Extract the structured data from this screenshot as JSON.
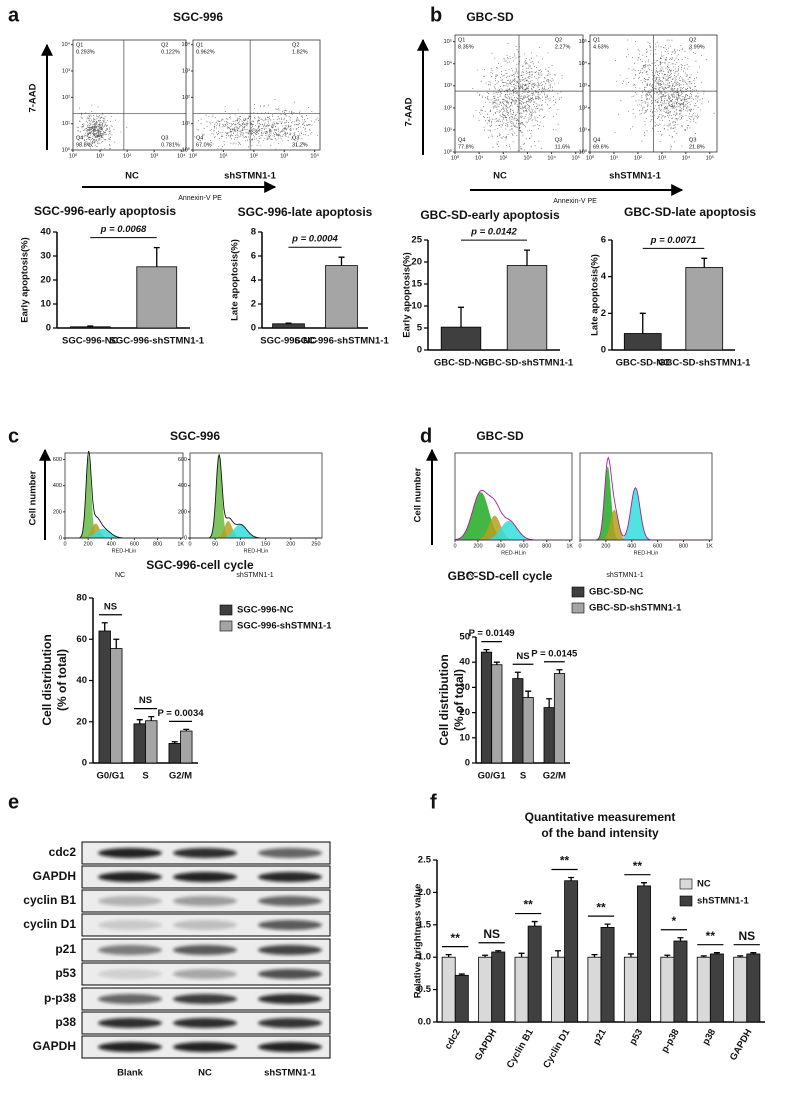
{
  "chart_data": [
    {
      "type": "scatter",
      "panel": "a",
      "title": "SGC-996",
      "ylabel": "7-AAD",
      "xlabel": "Annexin-V PE",
      "log_scale": true,
      "xlim": [
        1,
        15000
      ],
      "ylim": [
        1,
        15000
      ],
      "xticks": [
        {
          "value": 1,
          "label": "10⁰"
        },
        {
          "value": 10,
          "label": "10¹"
        },
        {
          "value": 100,
          "label": "10²"
        },
        {
          "value": 1000,
          "label": "10³"
        },
        {
          "value": 10000,
          "label": "10⁴"
        }
      ],
      "yticks": [
        {
          "value": 1,
          "label": "10⁰"
        },
        {
          "value": 10,
          "label": "10¹"
        },
        {
          "value": 100,
          "label": "10²"
        },
        {
          "value": 1000,
          "label": "10³"
        },
        {
          "value": 10000,
          "label": "10⁴"
        }
      ],
      "plots": [
        {
          "label": "NC",
          "quadrants": [
            {
              "name": "Q1",
              "text": "0.293%"
            },
            {
              "name": "Q2",
              "text": "0.122%"
            },
            {
              "name": "Q4",
              "text": "98.8%"
            },
            {
              "name": "Q3",
              "text": "0.781%"
            }
          ]
        },
        {
          "label": "shSTMN1-1",
          "quadrants": [
            {
              "name": "Q1",
              "text": "0.962%"
            },
            {
              "name": "Q2",
              "text": "1.82%"
            },
            {
              "name": "Q4",
              "text": "67.0%"
            },
            {
              "name": "Q3",
              "text": "31.2%"
            }
          ]
        }
      ]
    },
    {
      "type": "scatter",
      "panel": "b",
      "title": "GBC-SD",
      "ylabel": "7-AAD",
      "xlabel": "Annexin-V PE",
      "log_scale": true,
      "xlim": [
        1,
        200000
      ],
      "ylim": [
        1,
        200000
      ],
      "xticks": [
        {
          "value": 1,
          "label": "10⁰"
        },
        {
          "value": 10,
          "label": "10¹"
        },
        {
          "value": 100,
          "label": "10²"
        },
        {
          "value": 1000,
          "label": "10³"
        },
        {
          "value": 10000,
          "label": "10⁴"
        },
        {
          "value": 100000,
          "label": "10⁵"
        }
      ],
      "yticks": [
        {
          "value": 1,
          "label": "10⁰"
        },
        {
          "value": 10,
          "label": "10¹"
        },
        {
          "value": 100,
          "label": "10²"
        },
        {
          "value": 1000,
          "label": "10³"
        },
        {
          "value": 10000,
          "label": "10⁴"
        },
        {
          "value": 100000,
          "label": "10⁵"
        }
      ],
      "plots": [
        {
          "label": "NC",
          "quadrants": [
            {
              "name": "Q1",
              "text": "8.35%"
            },
            {
              "name": "Q2",
              "text": "2.27%"
            },
            {
              "name": "Q4",
              "text": "77.8%"
            },
            {
              "name": "Q3",
              "text": "11.6%"
            }
          ]
        },
        {
          "label": "shSTMN1-1",
          "quadrants": [
            {
              "name": "Q1",
              "text": "4.63%"
            },
            {
              "name": "Q2",
              "text": "3.99%"
            },
            {
              "name": "Q4",
              "text": "69.6%"
            },
            {
              "name": "Q3",
              "text": "21.8%"
            }
          ]
        }
      ]
    },
    {
      "type": "bar",
      "title": "SGC-996-early apoptosis",
      "ylabel": "Early apoptosis(%)",
      "categories": [
        "SGC-996-NC",
        "SGC-996-shSTMN1-1"
      ],
      "values": [
        0.5,
        25.5
      ],
      "errors": [
        0.3,
        8
      ],
      "colors": [
        "#3f3f3f",
        "#a5a5a5"
      ],
      "ylim": [
        0,
        40
      ],
      "yticks": [
        0,
        10,
        20,
        30,
        40
      ],
      "annotations": [
        "p = 0.0068"
      ]
    },
    {
      "type": "bar",
      "title": "SGC-996-late apoptosis",
      "ylabel": "Late apoptosis(%)",
      "categories": [
        "SGC-996-NC",
        "SGC-996-shSTMN1-1"
      ],
      "values": [
        0.35,
        5.2
      ],
      "errors": [
        0.05,
        0.7
      ],
      "colors": [
        "#3f3f3f",
        "#a5a5a5"
      ],
      "ylim": [
        0,
        8
      ],
      "yticks": [
        0,
        2,
        4,
        6,
        8
      ],
      "annotations": [
        "p = 0.0004"
      ]
    },
    {
      "type": "bar",
      "title": "GBC-SD-early apoptosis",
      "ylabel": "Early apoptosis(%)",
      "categories": [
        "GBC-SD-NC",
        "GBC-SD-shSTMN1-1"
      ],
      "values": [
        5.2,
        19.2
      ],
      "errors": [
        4.5,
        3.5
      ],
      "colors": [
        "#3f3f3f",
        "#a5a5a5"
      ],
      "ylim": [
        0,
        25
      ],
      "yticks": [
        0,
        5,
        10,
        15,
        20,
        25
      ],
      "annotations": [
        "p = 0.0142"
      ]
    },
    {
      "type": "bar",
      "title": "GBC-SD-late apoptosis",
      "ylabel": "Late apoptosis(%)",
      "categories": [
        "GBC-SD-NC",
        "GBC-SD-shSTMN1-1"
      ],
      "values": [
        0.9,
        4.5
      ],
      "errors": [
        1.1,
        0.5
      ],
      "colors": [
        "#3f3f3f",
        "#a5a5a5"
      ],
      "ylim": [
        0,
        6
      ],
      "yticks": [
        0,
        2,
        4,
        6
      ],
      "annotations": [
        "p = 0.0071"
      ]
    },
    {
      "type": "histogram",
      "panel": "c",
      "title": "SGC-996",
      "ylabel": "Cell number",
      "xlabel": "RED-HLin",
      "ylim": [
        0,
        650
      ],
      "yticks": [
        0,
        200,
        400,
        600
      ],
      "plots": [
        {
          "label": "NC",
          "xlim": [
            0,
            1020
          ],
          "xticks": [
            0,
            200,
            400,
            600,
            800,
            {
              "value": 1000,
              "label": "1K"
            }
          ]
        },
        {
          "label": "shSTMN1-1",
          "xlim": [
            0,
            262
          ],
          "xticks": [
            0,
            50,
            100,
            150,
            200,
            250
          ]
        }
      ]
    },
    {
      "type": "histogram",
      "panel": "d",
      "title": "GBC-SD",
      "ylabel": "Cell number",
      "xlabel": "RED-HLin",
      "plots": [
        {
          "label": "NC",
          "xlim": [
            0,
            1020
          ],
          "xticks": [
            0,
            200,
            400,
            600,
            800,
            {
              "value": 1000,
              "label": "1K"
            }
          ]
        },
        {
          "label": "shSTMN1-1",
          "xlim": [
            0,
            1020
          ],
          "xticks": [
            0,
            200,
            400,
            600,
            800,
            {
              "value": 1000,
              "label": "1K"
            }
          ]
        }
      ]
    },
    {
      "type": "bar",
      "title": "SGC-996-cell cycle",
      "ylabel": [
        "Cell distribution",
        "(% of total)"
      ],
      "categories": [
        "G0/G1",
        "S",
        "G2/M"
      ],
      "series": [
        {
          "name": "SGC-996-NC",
          "color": "#3f3f3f",
          "values": [
            64,
            19,
            9.5
          ],
          "errors": [
            4,
            2,
            0.8
          ]
        },
        {
          "name": "SGC-996-shSTMN1-1",
          "color": "#a5a5a5",
          "values": [
            55.5,
            20.5,
            15.5
          ],
          "errors": [
            4.5,
            2,
            0.8
          ]
        }
      ],
      "ylim": [
        0,
        80
      ],
      "yticks": [
        0,
        20,
        40,
        60,
        80
      ],
      "annotations": [
        "NS",
        "NS",
        "P = 0.0034"
      ]
    },
    {
      "type": "bar",
      "title": "GBC-SD-cell cycle",
      "ylabel": [
        "Cell distribution",
        "(% of total)"
      ],
      "categories": [
        "G0/G1",
        "S",
        "G2/M"
      ],
      "series": [
        {
          "name": "GBC-SD-NC",
          "color": "#3f3f3f",
          "values": [
            44,
            33.5,
            22
          ],
          "errors": [
            1,
            2.5,
            3.5
          ]
        },
        {
          "name": "GBC-SD-shSTMN1-1",
          "color": "#a5a5a5",
          "values": [
            39,
            26,
            35.5
          ],
          "errors": [
            1,
            2.5,
            1.5
          ]
        }
      ],
      "ylim": [
        0,
        50
      ],
      "yticks": [
        0,
        10,
        20,
        30,
        40,
        50
      ],
      "annotations": [
        "P = 0.0149",
        "NS",
        "P = 0.0145"
      ]
    },
    {
      "type": "bar",
      "panel": "f",
      "title": [
        "Quantitative measurement",
        "of the band intensity"
      ],
      "ylabel": "Relative brightness value",
      "categories": [
        "cdc2",
        "GAPDH",
        "Cyclin B1",
        "Cyclin D1",
        "p21",
        "p53",
        "p-p38",
        "p38",
        "GAPDH"
      ],
      "series": [
        {
          "name": "NC",
          "color": "#d9d9d9",
          "values": [
            1,
            1,
            1,
            1,
            1,
            1,
            1,
            1,
            1
          ],
          "errors": [
            0.04,
            0.03,
            0.06,
            0.1,
            0.04,
            0.05,
            0.03,
            0.02,
            0.02
          ]
        },
        {
          "name": "shSTMN1-1",
          "color": "#404040",
          "values": [
            0.72,
            1.08,
            1.48,
            2.18,
            1.46,
            2.1,
            1.25,
            1.05,
            1.05
          ],
          "errors": [
            0.02,
            0.02,
            0.07,
            0.05,
            0.05,
            0.05,
            0.05,
            0.02,
            0.02
          ]
        }
      ],
      "ylim": [
        0,
        2.5
      ],
      "yticks": [
        {
          "value": 0,
          "label": "0.0"
        },
        0.5,
        {
          "value": 1,
          "label": "1.0"
        },
        1.5,
        {
          "value": 2,
          "label": "2.0"
        },
        2.5
      ],
      "annotations": [
        "**",
        "NS",
        "**",
        "**",
        "**",
        "**",
        "*",
        "**",
        "NS"
      ]
    }
  ],
  "blot": {
    "panel": "e",
    "rows": [
      "cdc2",
      "GAPDH",
      "cyclin B1",
      "cyclin D1",
      "p21",
      "p53",
      "p-p38",
      "p38",
      "GAPDH"
    ],
    "columns": [
      "Blank",
      "NC",
      "shSTMN1-1"
    ]
  }
}
